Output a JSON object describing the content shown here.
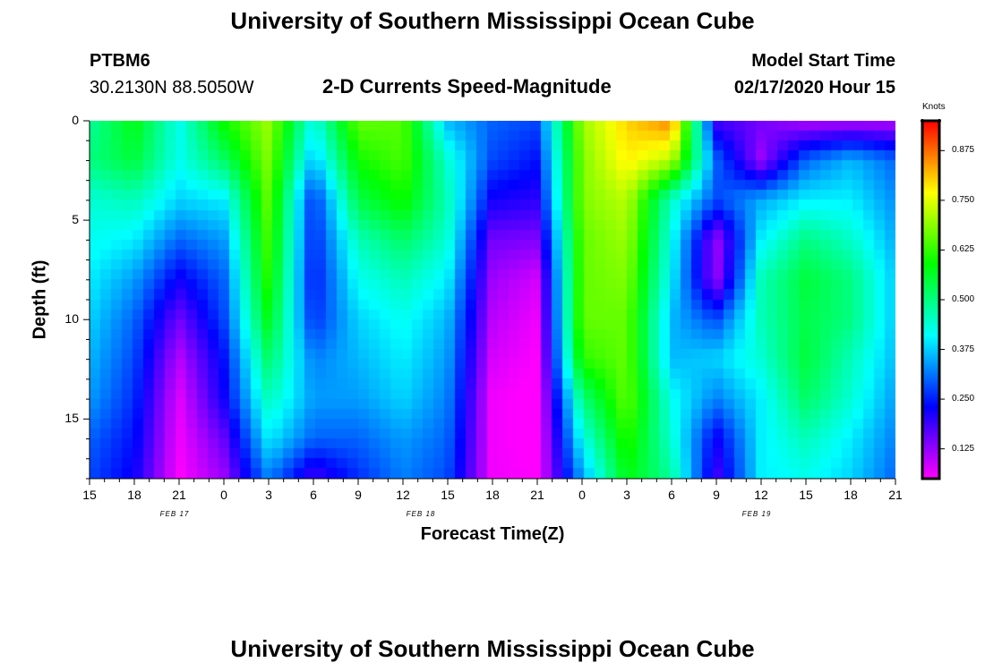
{
  "header": {
    "title": "University of Southern Mississippi Ocean Cube",
    "station": "PTBM6",
    "coords": "30.2130N 88.5050W",
    "model_label": "Model Start Time",
    "model_time": "02/17/2020 Hour 15",
    "subtitle": "2-D Currents Speed-Magnitude"
  },
  "footer": {
    "title": "University of Southern Mississippi Ocean Cube"
  },
  "colors": {
    "background": "#ffffff",
    "colorbar_frame": "#000000"
  },
  "chart_data": {
    "type": "heatmap",
    "title": "2-D Currents Speed-Magnitude",
    "xlabel": "Forecast Time(Z)",
    "ylabel": "Depth (ft)",
    "x_range_hours": [
      0,
      54
    ],
    "y_range_ft": [
      0,
      18
    ],
    "y_inverted": true,
    "x_tick_labels": [
      "15",
      "18",
      "21",
      "0",
      "3",
      "6",
      "9",
      "12",
      "15",
      "18",
      "21",
      "0",
      "3",
      "6",
      "9",
      "12",
      "15",
      "18",
      "21"
    ],
    "y_ticks": [
      0,
      5,
      10,
      15
    ],
    "y_tick_labels": [
      "0",
      "5",
      "10",
      "15"
    ],
    "date_labels": [
      {
        "text": "FEB 17",
        "hour": 4.5
      },
      {
        "text": "FEB 18",
        "hour": 21
      },
      {
        "text": "FEB 19",
        "hour": 43.5
      }
    ],
    "colorbar": {
      "label": "Knots",
      "range": [
        0.05,
        0.95
      ],
      "ticks": [
        0.125,
        0.25,
        0.375,
        0.5,
        0.625,
        0.75,
        0.875
      ],
      "tick_labels": [
        "0.125",
        "0.250",
        "0.375",
        "0.500",
        "0.625",
        "0.750",
        "0.875"
      ]
    },
    "value_units": "knots",
    "value_grid": {
      "note": "speed in knots, rows = depth from 0 ft (top) to 18 ft (bottom), columns = forecast hour",
      "depths_ft": [
        0,
        2,
        4,
        6,
        8,
        10,
        12,
        14,
        16,
        18
      ],
      "hours": [
        0,
        3,
        6,
        9,
        12,
        15,
        18,
        21,
        24,
        27,
        30,
        33,
        36,
        39,
        42,
        45,
        48,
        51,
        54
      ],
      "rows": [
        [
          0.48,
          0.58,
          0.42,
          0.6,
          0.7,
          0.42,
          0.66,
          0.65,
          0.36,
          0.3,
          0.28,
          0.7,
          0.8,
          0.86,
          0.18,
          0.15,
          0.1,
          0.1,
          0.1
        ],
        [
          0.5,
          0.55,
          0.42,
          0.52,
          0.68,
          0.36,
          0.6,
          0.64,
          0.44,
          0.28,
          0.24,
          0.68,
          0.78,
          0.72,
          0.3,
          0.12,
          0.3,
          0.36,
          0.3
        ],
        [
          0.44,
          0.46,
          0.38,
          0.4,
          0.66,
          0.26,
          0.54,
          0.6,
          0.46,
          0.22,
          0.2,
          0.68,
          0.72,
          0.45,
          0.28,
          0.35,
          0.4,
          0.4,
          0.33
        ],
        [
          0.42,
          0.4,
          0.3,
          0.34,
          0.64,
          0.25,
          0.46,
          0.52,
          0.44,
          0.15,
          0.14,
          0.66,
          0.7,
          0.42,
          0.12,
          0.4,
          0.5,
          0.45,
          0.35
        ],
        [
          0.4,
          0.34,
          0.22,
          0.3,
          0.62,
          0.24,
          0.42,
          0.46,
          0.4,
          0.12,
          0.08,
          0.66,
          0.68,
          0.4,
          0.12,
          0.46,
          0.55,
          0.5,
          0.37
        ],
        [
          0.38,
          0.3,
          0.15,
          0.28,
          0.58,
          0.26,
          0.38,
          0.42,
          0.36,
          0.1,
          0.06,
          0.66,
          0.66,
          0.36,
          0.28,
          0.46,
          0.54,
          0.5,
          0.37
        ],
        [
          0.36,
          0.28,
          0.1,
          0.24,
          0.52,
          0.32,
          0.36,
          0.4,
          0.34,
          0.08,
          0.05,
          0.62,
          0.66,
          0.36,
          0.38,
          0.44,
          0.55,
          0.46,
          0.36
        ],
        [
          0.34,
          0.26,
          0.07,
          0.22,
          0.46,
          0.34,
          0.34,
          0.38,
          0.32,
          0.06,
          0.04,
          0.5,
          0.66,
          0.42,
          0.32,
          0.4,
          0.52,
          0.44,
          0.34
        ],
        [
          0.3,
          0.24,
          0.06,
          0.16,
          0.4,
          0.3,
          0.3,
          0.34,
          0.3,
          0.06,
          0.04,
          0.42,
          0.62,
          0.44,
          0.22,
          0.4,
          0.46,
          0.4,
          0.32
        ],
        [
          0.28,
          0.22,
          0.05,
          0.12,
          0.32,
          0.18,
          0.26,
          0.32,
          0.28,
          0.06,
          0.05,
          0.34,
          0.58,
          0.48,
          0.18,
          0.4,
          0.42,
          0.38,
          0.3
        ]
      ]
    }
  }
}
